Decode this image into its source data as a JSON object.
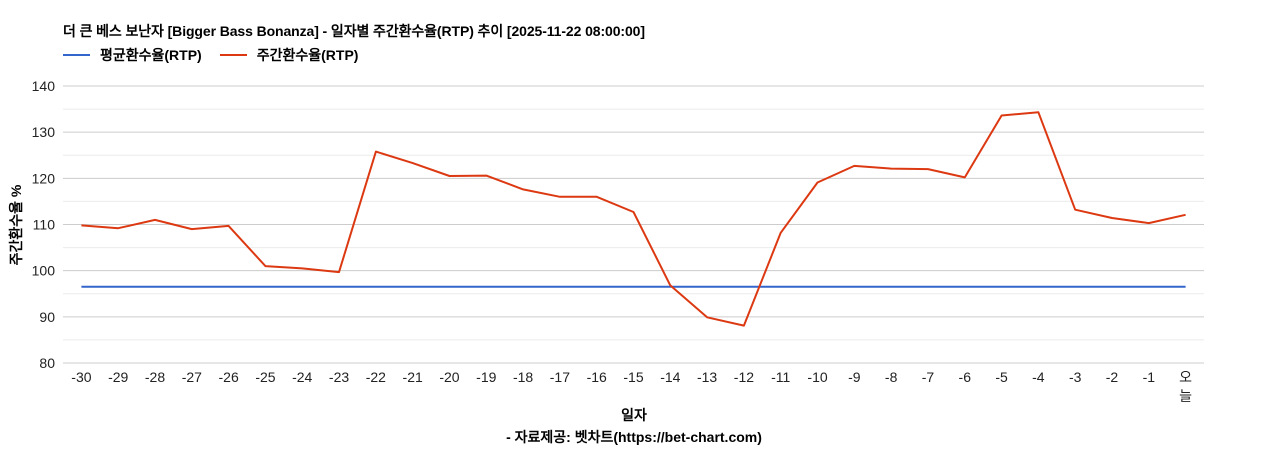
{
  "chart_data": {
    "type": "line",
    "title": "더 큰 베스 보난자 [Bigger Bass Bonanza] - 일자별 주간환수율(RTP) 추이 [2025-11-22 08:00:00]",
    "xlabel": "일자",
    "ylabel": "주간환수율 %",
    "source": "- 자료제공: 벳차트(https://bet-chart.com)",
    "ylim": [
      80,
      140
    ],
    "yticks": [
      80,
      90,
      100,
      110,
      120,
      130,
      140
    ],
    "grid": true,
    "legend_position": "top",
    "categories": [
      "-30",
      "-29",
      "-28",
      "-27",
      "-26",
      "-25",
      "-24",
      "-23",
      "-22",
      "-21",
      "-20",
      "-19",
      "-18",
      "-17",
      "-16",
      "-15",
      "-14",
      "-13",
      "-12",
      "-11",
      "-10",
      "-9",
      "-8",
      "-7",
      "-6",
      "-5",
      "-4",
      "-3",
      "-2",
      "-1",
      "오늘"
    ],
    "series": [
      {
        "name": "평균환수율(RTP)",
        "color": "#3366cc",
        "values": [
          96.5,
          96.5,
          96.5,
          96.5,
          96.5,
          96.5,
          96.5,
          96.5,
          96.5,
          96.5,
          96.5,
          96.5,
          96.5,
          96.5,
          96.5,
          96.5,
          96.5,
          96.5,
          96.5,
          96.5,
          96.5,
          96.5,
          96.5,
          96.5,
          96.5,
          96.5,
          96.5,
          96.5,
          96.5,
          96.5,
          96.5
        ]
      },
      {
        "name": "주간환수율(RTP)",
        "color": "#dc3912",
        "values": [
          109.8,
          109.2,
          111.0,
          109.0,
          109.7,
          101.0,
          100.5,
          99.7,
          125.8,
          123.3,
          120.5,
          120.6,
          117.6,
          116.0,
          116.0,
          112.7,
          96.8,
          89.9,
          88.1,
          108.2,
          119.1,
          122.7,
          122.1,
          122.0,
          120.2,
          133.6,
          134.3,
          113.2,
          111.4,
          110.3,
          112.1
        ]
      }
    ]
  },
  "header": {
    "title": "더 큰 베스 보난자 [Bigger Bass Bonanza] - 일자별 주간환수율(RTP) 추이 [2025-11-22 08:00:00]"
  },
  "legend": {
    "items": [
      {
        "label": "평균환수율(RTP)",
        "color": "#3366cc"
      },
      {
        "label": "주간환수율(RTP)",
        "color": "#dc3912"
      }
    ]
  },
  "axes": {
    "x_title": "일자",
    "y_title": "주간환수율 %"
  },
  "footer": {
    "source": "- 자료제공: 벳차트(https://bet-chart.com)"
  }
}
